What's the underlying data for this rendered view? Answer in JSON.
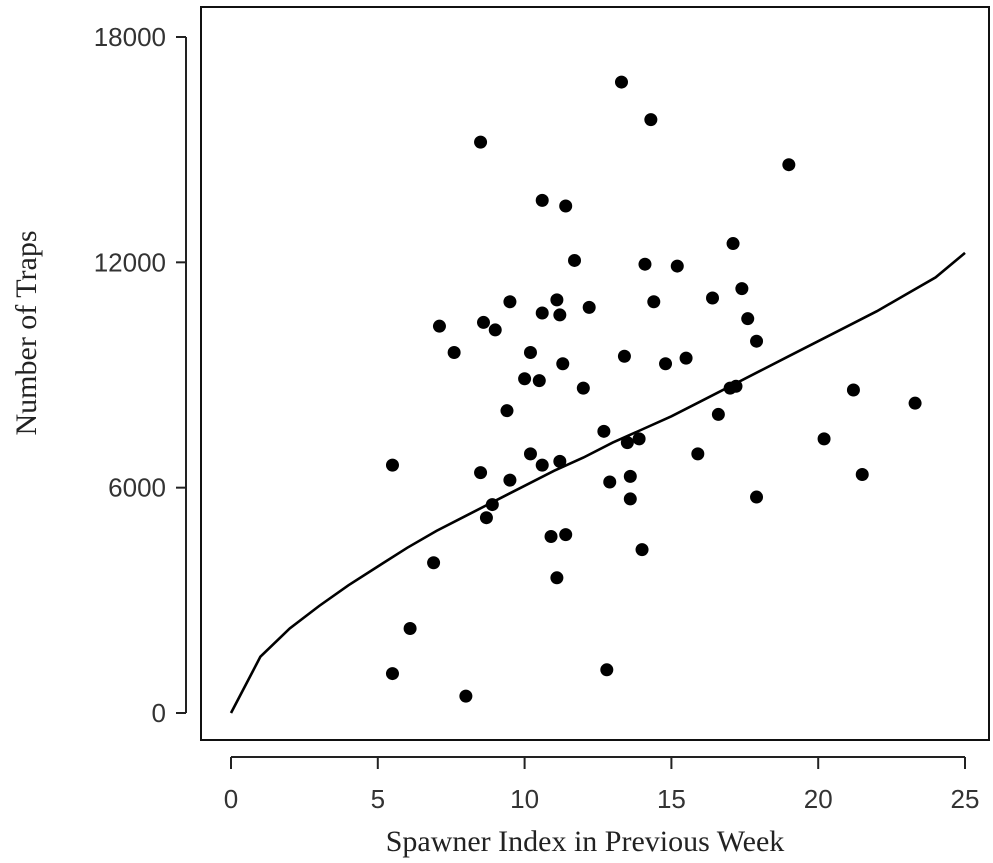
{
  "chart_data": {
    "type": "scatter",
    "title": "",
    "xlabel": "Spawner Index in Previous Week",
    "ylabel": "Number of Traps",
    "xlim": [
      0,
      25
    ],
    "ylim": [
      0,
      18000
    ],
    "x_ticks": [
      0,
      5,
      10,
      15,
      20,
      25
    ],
    "y_ticks": [
      0,
      6000,
      12000,
      18000
    ],
    "grid": false,
    "legend": "none",
    "point_color": "#000000",
    "series": [
      {
        "type": "scatter",
        "x": [
          13.3,
          14.3,
          8.5,
          19.0,
          10.6,
          11.4,
          17.1,
          11.7,
          14.1,
          15.2,
          17.4,
          16.4,
          11.1,
          14.4,
          9.5,
          12.2,
          10.6,
          11.2,
          17.6,
          7.1,
          8.6,
          9.0,
          17.9,
          7.6,
          10.2,
          13.4,
          15.5,
          11.3,
          14.8,
          10.0,
          10.5,
          17.2,
          17.0,
          12.0,
          21.2,
          23.3,
          9.4,
          16.6,
          12.7,
          13.9,
          13.5,
          20.2,
          10.2,
          15.9,
          11.2,
          5.5,
          10.6,
          8.5,
          21.5,
          13.6,
          9.5,
          12.9,
          13.6,
          17.9,
          8.9,
          8.7,
          11.4,
          10.9,
          14.0,
          6.9,
          11.1,
          6.1,
          12.8,
          5.5,
          8.0
        ],
        "y": [
          16800,
          15800,
          15200,
          14600,
          13650,
          13500,
          12500,
          12050,
          11950,
          11900,
          11300,
          11050,
          11000,
          10950,
          10950,
          10800,
          10650,
          10600,
          10500,
          10300,
          10400,
          10200,
          9900,
          9600,
          9600,
          9500,
          9450,
          9300,
          9300,
          8900,
          8850,
          8700,
          8650,
          8650,
          8600,
          8250,
          8050,
          7950,
          7500,
          7300,
          7200,
          7300,
          6900,
          6900,
          6700,
          6600,
          6600,
          6400,
          6350,
          6300,
          6200,
          6150,
          5700,
          5750,
          5550,
          5200,
          4750,
          4700,
          4350,
          4000,
          3600,
          2250,
          1150,
          1050,
          450
        ]
      },
      {
        "type": "line",
        "x": [
          0,
          1,
          2,
          3,
          4,
          5,
          6,
          7,
          8,
          9,
          10,
          11,
          12,
          13,
          14,
          15,
          16,
          17,
          18,
          19,
          20,
          21,
          22,
          23,
          24,
          25
        ],
        "y": [
          0,
          1500,
          2250,
          2850,
          3400,
          3900,
          4400,
          4850,
          5250,
          5650,
          6050,
          6450,
          6800,
          7200,
          7550,
          7900,
          8300,
          8700,
          9100,
          9500,
          9900,
          10300,
          10700,
          11150,
          11600,
          12250
        ]
      }
    ]
  }
}
